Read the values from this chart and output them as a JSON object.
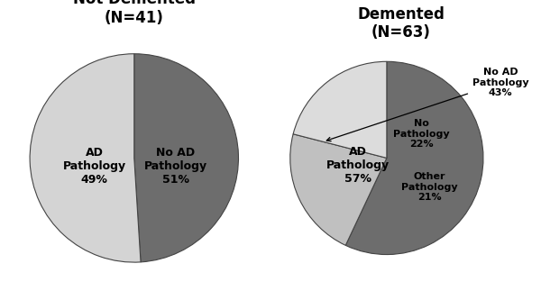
{
  "chart1": {
    "title": "Not Demented",
    "subtitle": "(N=41)",
    "slices": [
      49,
      51
    ],
    "colors": [
      "#6d6d6d",
      "#d4d4d4"
    ],
    "startangle": 90,
    "counterclock": false
  },
  "chart2": {
    "title": "Demented",
    "subtitle": "(N=63)",
    "slices": [
      57,
      22,
      21
    ],
    "colors": [
      "#6d6d6d",
      "#c0c0c0",
      "#dcdcdc"
    ],
    "startangle": 90,
    "counterclock": false
  },
  "bg_color": "#ffffff",
  "title_fontsize": 12,
  "label_fontsize": 9,
  "edge_color": "#444444",
  "edge_linewidth": 0.8
}
